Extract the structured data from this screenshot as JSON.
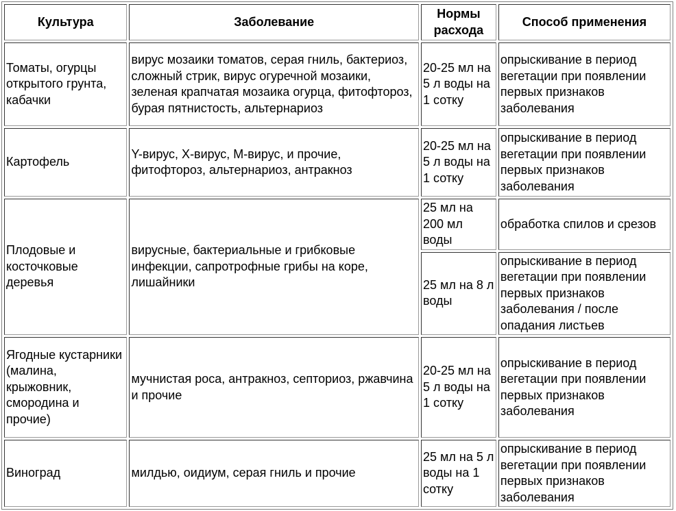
{
  "headers": [
    "Культура",
    "Заболевание",
    "Нормы расхода",
    "Способ применения"
  ],
  "rows": [
    {
      "culture": "Томаты, огурцы открытого грунта, кабачки",
      "disease": "вирус мозаики томатов, серая гниль, бактериоз, сложный стрик, вирус огуречной мозаики, зеленая крапчатая мозаика огурца, фитофтороз, бурая пятнистость, альтернариоз",
      "rate": "20-25 мл на 5 л воды на 1 сотку",
      "method": "опрыскивание в период вегетации при появлении первых признаков заболевания"
    },
    {
      "culture": "Картофель",
      "disease": "Y-вирус, X-вирус, M-вирус, и прочие, фитофтороз, альтернариоз, антракноз",
      "rate": "20-25 мл на 5 л воды на 1 сотку",
      "method": "опрыскивание в период вегетации при появлении первых признаков заболевания"
    },
    {
      "culture": "Плодовые и косточковые деревья",
      "disease": "вирусные, бактериальные и грибковые инфекции, сапротрофные грибы на коре, лишайники",
      "rate": "25 мл на 200 мл воды",
      "method": "обработка спилов и срезов",
      "rate2": "25 мл на 8 л воды",
      "method2": "опрыскивание в период вегетации при появлении первых признаков заболевания / после опадания листьев"
    },
    {
      "culture": "Ягодные кустарники (малина, крыжовник, смородина и прочие)",
      "disease": "мучнистая роса, антракноз, септориоз, ржавчина и прочие",
      "rate": "20-25 мл на 5 л воды на 1 сотку",
      "method": "опрыскивание в период вегетации при появлении первых признаков заболевания"
    },
    {
      "culture": "Виноград",
      "disease": "милдью, оидиум, серая гниль и прочие",
      "rate": "25 мл на 5 л воды на 1 сотку",
      "method": "опрыскивание в период вегетации при появлении первых признаков заболевания"
    }
  ]
}
